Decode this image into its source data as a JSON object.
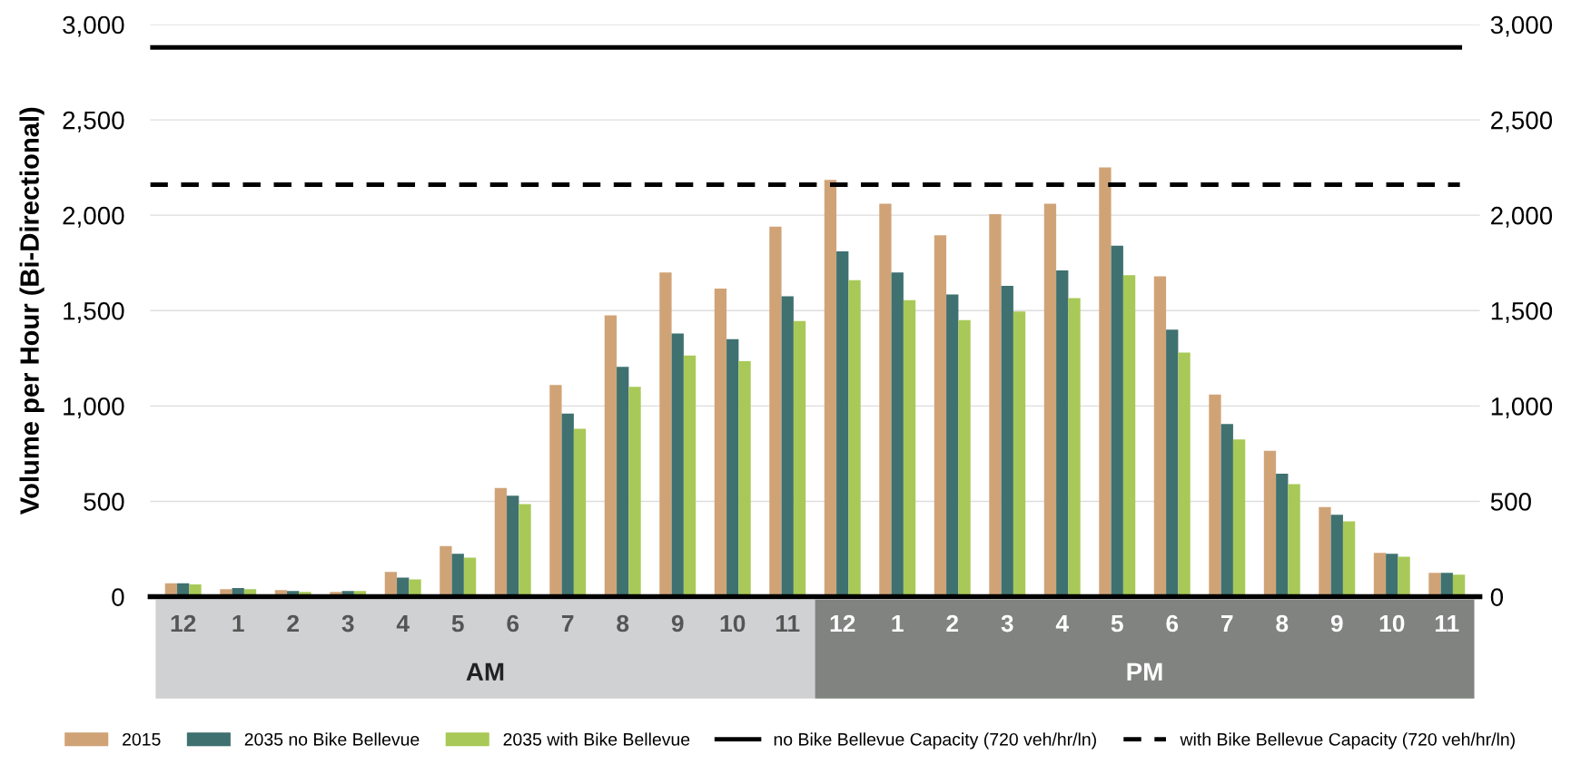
{
  "chart_data": {
    "type": "bar",
    "ylabel": "Volume per Hour (Bi-Directional)",
    "categories": [
      "12",
      "1",
      "2",
      "3",
      "4",
      "5",
      "6",
      "7",
      "8",
      "9",
      "10",
      "11",
      "12",
      "1",
      "2",
      "3",
      "4",
      "5",
      "6",
      "7",
      "8",
      "9",
      "10",
      "11"
    ],
    "series": [
      {
        "name": "2015",
        "color": "#d0a377",
        "values": [
          70,
          40,
          35,
          25,
          130,
          265,
          570,
          1110,
          1475,
          1700,
          1615,
          1940,
          2185,
          2060,
          1895,
          2005,
          2060,
          2250,
          1680,
          1060,
          765,
          470,
          230,
          125
        ]
      },
      {
        "name": "2035 no Bike Bellevue",
        "color": "#3f7170",
        "values": [
          70,
          45,
          30,
          30,
          100,
          225,
          530,
          960,
          1205,
          1380,
          1350,
          1575,
          1810,
          1700,
          1585,
          1630,
          1710,
          1840,
          1400,
          905,
          645,
          430,
          225,
          125
        ]
      },
      {
        "name": "2035 with Bike Bellevue",
        "color": "#a8c957",
        "values": [
          65,
          40,
          25,
          30,
          90,
          205,
          485,
          880,
          1100,
          1265,
          1235,
          1445,
          1660,
          1555,
          1450,
          1495,
          1565,
          1685,
          1280,
          825,
          590,
          395,
          210,
          115
        ]
      }
    ],
    "ref_lines": [
      {
        "axis": "y",
        "value": 2880,
        "label": "no Bike Bellevue Capacity (720 veh/hr/ln)",
        "color": "#000000",
        "line_style": "solid"
      },
      {
        "axis": "y",
        "value": 2160,
        "label": "with Bike Bellevue Capacity (720 veh/hr/ln)",
        "color": "#000000",
        "line_style": "dashed"
      }
    ],
    "annotations": [
      "AM",
      "PM"
    ],
    "ylim": [
      0,
      3000
    ],
    "yticks": [
      {
        "value": 0,
        "label": "0"
      },
      {
        "value": 500,
        "label": "500"
      },
      {
        "value": 1000,
        "label": "1,000"
      },
      {
        "value": 1500,
        "label": "1,500"
      },
      {
        "value": 2000,
        "label": "2,000"
      },
      {
        "value": 2500,
        "label": "2,500"
      },
      {
        "value": 3000,
        "label": "3,000"
      }
    ],
    "y2lim": [
      0,
      3000
    ],
    "y2ticks": [
      {
        "value": 0,
        "label": "0"
      },
      {
        "value": 500,
        "label": "500"
      },
      {
        "value": 1000,
        "label": "1,000"
      },
      {
        "value": 1500,
        "label": "1,500"
      },
      {
        "value": 2000,
        "label": "2,000"
      },
      {
        "value": 2500,
        "label": "2,500"
      },
      {
        "value": 3000,
        "label": "3,000"
      }
    ],
    "grid": "y",
    "legend": "bottom"
  }
}
